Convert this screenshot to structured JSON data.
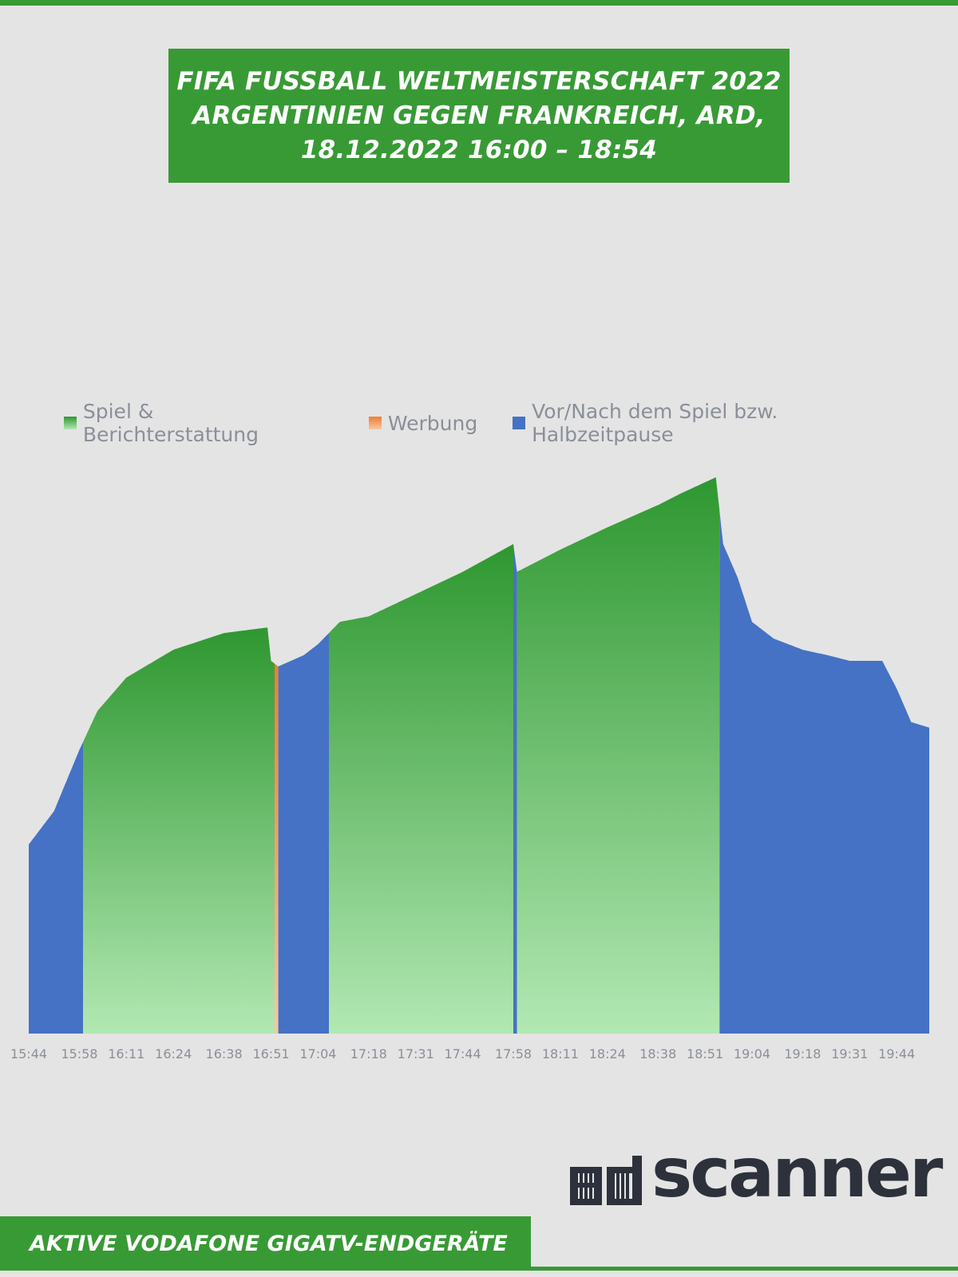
{
  "header": {
    "title_lines": [
      "FIFA FUSSBALL WELTMEISTERSCHAFT 2022",
      "ARGENTINIEN GEGEN FRANKREICH, ARD,",
      "18.12.2022 16:00 – 18:54"
    ]
  },
  "colors": {
    "brand_green": "#389a35",
    "spiel_top": "#2e9730",
    "spiel_bottom": "#b2e8b3",
    "werbung": "#ee7d31",
    "vor_nach": "#4572c4",
    "logo_dark": "#2d313b"
  },
  "chart_data": {
    "type": "area",
    "series": [
      {
        "name": "Spiel & Berichterstattung",
        "color": "#2e9730"
      },
      {
        "name": "Werbung",
        "color": "#ee7d31"
      },
      {
        "name": "Vor/Nach dem Spiel bzw. Halbzeitpause",
        "color": "#4572c4"
      }
    ],
    "x_tick_labels": [
      "15:44",
      "15:58",
      "16:11",
      "16:24",
      "16:38",
      "16:51",
      "17:04",
      "17:18",
      "17:31",
      "17:44",
      "17:58",
      "18:11",
      "18:24",
      "18:38",
      "18:51",
      "19:04",
      "19:18",
      "19:31",
      "19:44"
    ],
    "x_range": [
      "15:44",
      "19:53"
    ],
    "y_axis_shown": false,
    "grid": false,
    "legend_position": "top",
    "profile_relative_to_peak": {
      "times": [
        "15:44",
        "15:51",
        "15:58",
        "16:03",
        "16:11",
        "16:24",
        "16:38",
        "16:50",
        "16:51",
        "16:53",
        "17:00",
        "17:04",
        "17:10",
        "17:18",
        "17:31",
        "17:44",
        "17:58",
        "17:59",
        "18:05",
        "18:11",
        "18:24",
        "18:38",
        "18:44",
        "18:54",
        "18:56",
        "19:00",
        "19:04",
        "19:10",
        "19:18",
        "19:25",
        "19:31",
        "19:40",
        "19:44",
        "19:48",
        "19:53"
      ],
      "values": [
        0.34,
        0.4,
        0.51,
        0.58,
        0.64,
        0.69,
        0.72,
        0.73,
        0.67,
        0.66,
        0.68,
        0.7,
        0.74,
        0.75,
        0.79,
        0.83,
        0.88,
        0.83,
        0.85,
        0.87,
        0.91,
        0.95,
        0.97,
        1.0,
        0.88,
        0.82,
        0.74,
        0.71,
        0.69,
        0.68,
        0.67,
        0.67,
        0.62,
        0.56,
        0.55
      ]
    },
    "segments": [
      {
        "start": "15:44",
        "end": "15:59",
        "type": "Vor/Nach dem Spiel bzw. Halbzeitpause"
      },
      {
        "start": "15:59",
        "end": "16:52",
        "type": "Spiel & Berichterstattung"
      },
      {
        "start": "16:52",
        "end": "16:53",
        "type": "Werbung"
      },
      {
        "start": "16:53",
        "end": "17:07",
        "type": "Vor/Nach dem Spiel bzw. Halbzeitpause"
      },
      {
        "start": "17:07",
        "end": "17:58",
        "type": "Spiel & Berichterstattung"
      },
      {
        "start": "17:58",
        "end": "17:59",
        "type": "Vor/Nach dem Spiel bzw. Halbzeitpause"
      },
      {
        "start": "17:59",
        "end": "18:55",
        "type": "Spiel & Berichterstattung"
      },
      {
        "start": "18:55",
        "end": "19:53",
        "type": "Vor/Nach dem Spiel bzw. Halbzeitpause"
      }
    ]
  },
  "brand": {
    "logo_text": "adscanner"
  },
  "footer": {
    "label": "AKTIVE VODAFONE GIGATV-ENDGERÄTE"
  }
}
